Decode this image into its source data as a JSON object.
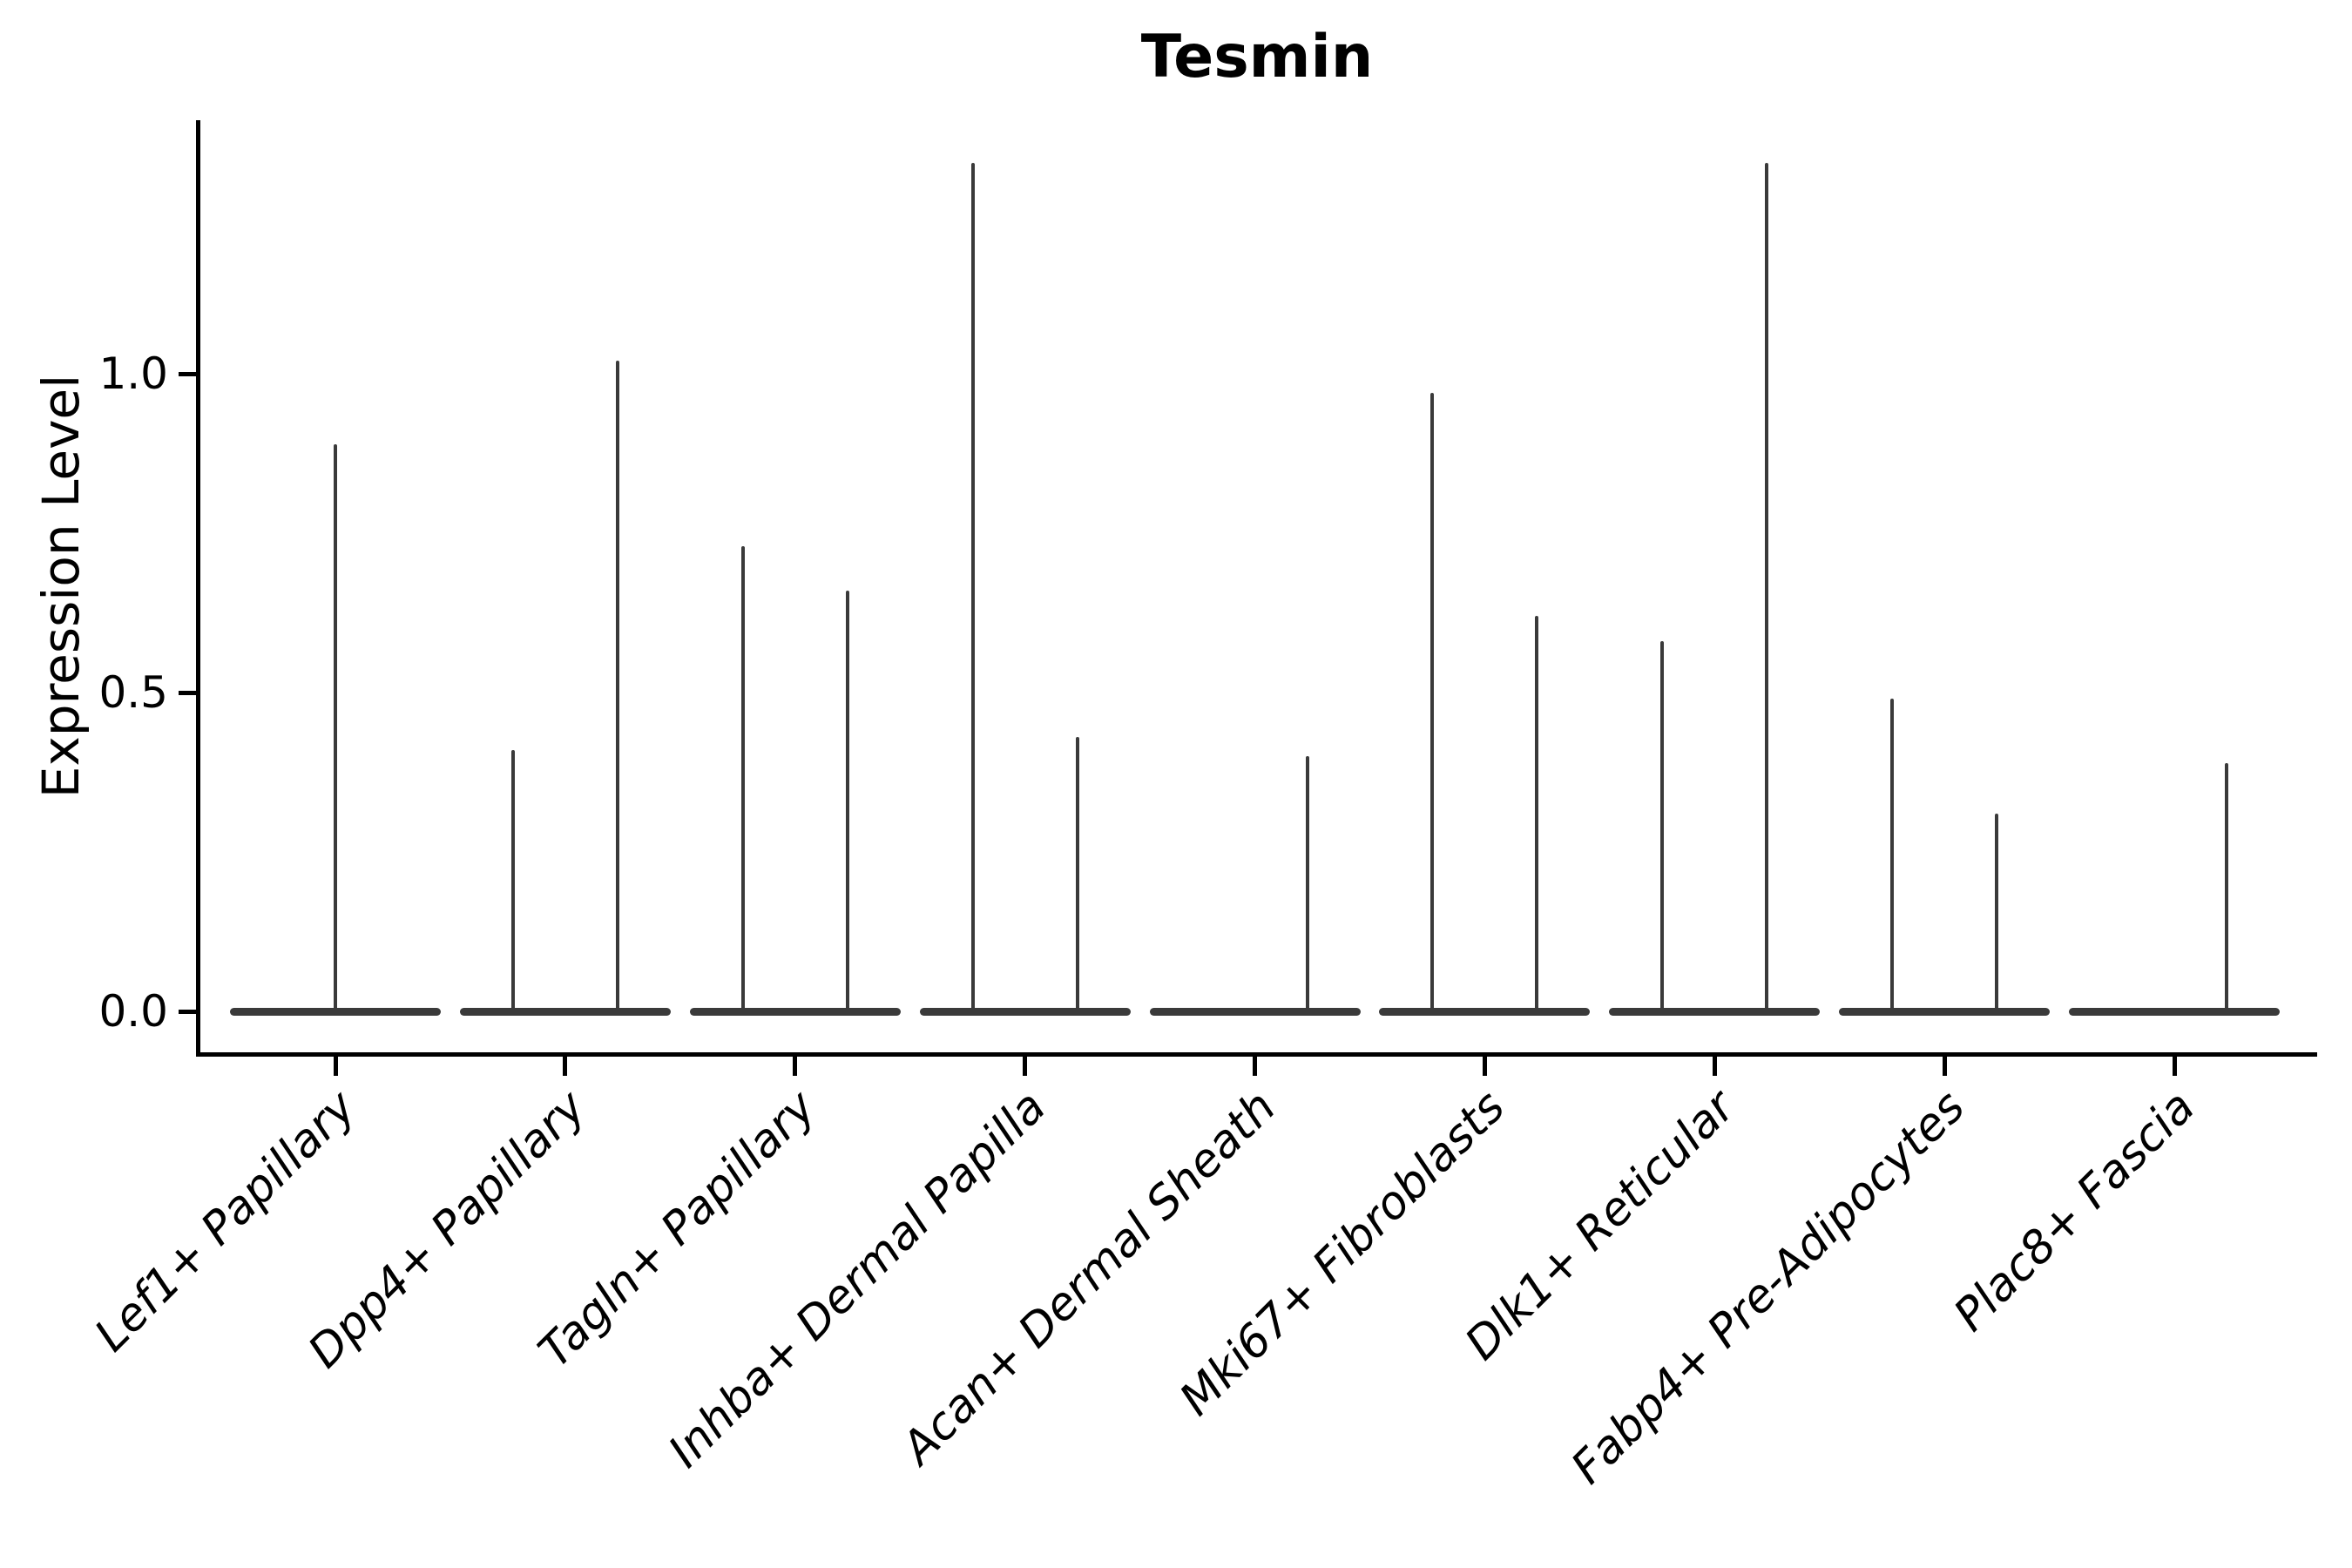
{
  "title": "Tesmin",
  "axes": {
    "ylabel": "Expression Level",
    "ytick_labels": [
      "0.0",
      "0.5",
      "1.0"
    ],
    "ytick_values": [
      0.0,
      0.5,
      1.0
    ]
  },
  "chart_data": {
    "type": "violin",
    "title": "Tesmin",
    "xlabel": "",
    "ylabel": "Expression Level",
    "yticks": [
      0.0,
      0.5,
      1.0
    ],
    "ylim": [
      -0.07,
      1.4
    ],
    "grid": false,
    "legend": "none",
    "note": "Sparse single-cell expression violins: each cell type has a flattened violin body at 0 with up to two thin dodged spikes (left/right sub-violins) rising to the maximum expression value.",
    "categories": [
      "Lef1+ Papillary",
      "Dpp4+ Papillary",
      "Tagln+ Papillary",
      "Inhba+ Dermal Papilla",
      "Acan+ Dermal Sheath",
      "Mki67+ Fibroblasts",
      "Dlk1+ Reticular",
      "Fabp4+ Pre-Adipocytes",
      "Plac8+ Fascia"
    ],
    "series": [
      {
        "category": "Lef1+ Papillary",
        "violins": [
          {
            "position": "single",
            "max": 0.89
          }
        ]
      },
      {
        "category": "Dpp4+ Papillary",
        "violins": [
          {
            "position": "left",
            "max": 0.41
          },
          {
            "position": "right",
            "max": 1.02
          }
        ]
      },
      {
        "category": "Tagln+ Papillary",
        "violins": [
          {
            "position": "left",
            "max": 0.73
          },
          {
            "position": "right",
            "max": 0.66
          }
        ]
      },
      {
        "category": "Inhba+ Dermal Papilla",
        "violins": [
          {
            "position": "left",
            "max": 1.33
          },
          {
            "position": "right",
            "max": 0.43
          }
        ]
      },
      {
        "category": "Acan+ Dermal Sheath",
        "violins": [
          {
            "position": "left",
            "max": 0.0
          },
          {
            "position": "right",
            "max": 0.4
          }
        ]
      },
      {
        "category": "Mki67+ Fibroblasts",
        "violins": [
          {
            "position": "left",
            "max": 0.97
          },
          {
            "position": "right",
            "max": 0.62
          }
        ]
      },
      {
        "category": "Dlk1+ Reticular",
        "violins": [
          {
            "position": "left",
            "max": 0.58
          },
          {
            "position": "right",
            "max": 1.33
          }
        ]
      },
      {
        "category": "Fabp4+ Pre-Adipocytes",
        "violins": [
          {
            "position": "left",
            "max": 0.49
          },
          {
            "position": "right",
            "max": 0.31
          }
        ]
      },
      {
        "category": "Plac8+ Fascia",
        "violins": [
          {
            "position": "left",
            "max": 0.0
          },
          {
            "position": "right",
            "max": 0.39
          }
        ]
      }
    ],
    "colors": {
      "violin": "#3a3a3a",
      "axis": "#000000",
      "text": "#000000",
      "background": "#ffffff"
    }
  }
}
